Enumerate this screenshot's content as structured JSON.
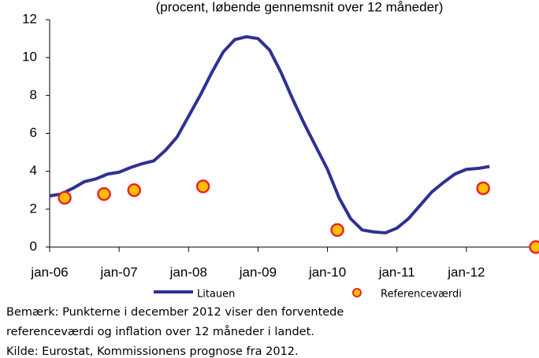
{
  "chart_data": {
    "type": "line",
    "subtitle": "(procent, løbende gennemsnit over 12 måneder)",
    "xlim": [
      0,
      84
    ],
    "xticks": [
      {
        "value": 0,
        "label": "jan-06"
      },
      {
        "value": 12,
        "label": "jan-07"
      },
      {
        "value": 24,
        "label": "jan-08"
      },
      {
        "value": 36,
        "label": "jan-09"
      },
      {
        "value": 48,
        "label": "jan-10"
      },
      {
        "value": 60,
        "label": "jan-11"
      },
      {
        "value": 72,
        "label": "jan-12"
      }
    ],
    "ylim": [
      0,
      12
    ],
    "yticks": [
      0,
      2,
      4,
      6,
      8,
      10,
      12
    ],
    "series": [
      {
        "name": "Litauen",
        "color": "#2e3192",
        "kind": "line",
        "x": [
          0,
          2,
          4,
          6,
          8,
          10,
          12,
          14,
          16,
          18,
          20,
          22,
          24,
          26,
          28,
          30,
          32,
          34,
          36,
          38,
          40,
          42,
          44,
          46,
          48,
          50,
          52,
          54,
          56,
          58,
          60,
          62,
          64,
          66,
          68,
          70,
          72,
          74,
          76
        ],
        "values": [
          2.7,
          2.8,
          3.1,
          3.45,
          3.6,
          3.85,
          3.95,
          4.2,
          4.4,
          4.55,
          5.1,
          5.8,
          6.9,
          8.0,
          9.2,
          10.3,
          10.95,
          11.1,
          11.0,
          10.4,
          9.2,
          7.8,
          6.5,
          5.3,
          4.1,
          2.6,
          1.5,
          0.9,
          0.8,
          0.75,
          1.0,
          1.5,
          2.2,
          2.9,
          3.4,
          3.85,
          4.1,
          4.15,
          4.25
        ]
      },
      {
        "name": "Referenceværdi",
        "color": "#ffc000",
        "edge": "#e8262a",
        "kind": "points",
        "x": [
          2.6,
          9.4,
          14.6,
          26.5,
          49.7,
          74.9,
          84
        ],
        "values": [
          2.6,
          2.8,
          3.0,
          3.2,
          0.9,
          3.1,
          0
        ]
      }
    ],
    "notes": [
      "Bemærk: Punkterne i december 2012  viser den forventede",
      "referenceværdi og inflation over 12 måneder i landet.",
      "Kilde: Eurostat, Kommissionens prognose fra 2012."
    ]
  }
}
